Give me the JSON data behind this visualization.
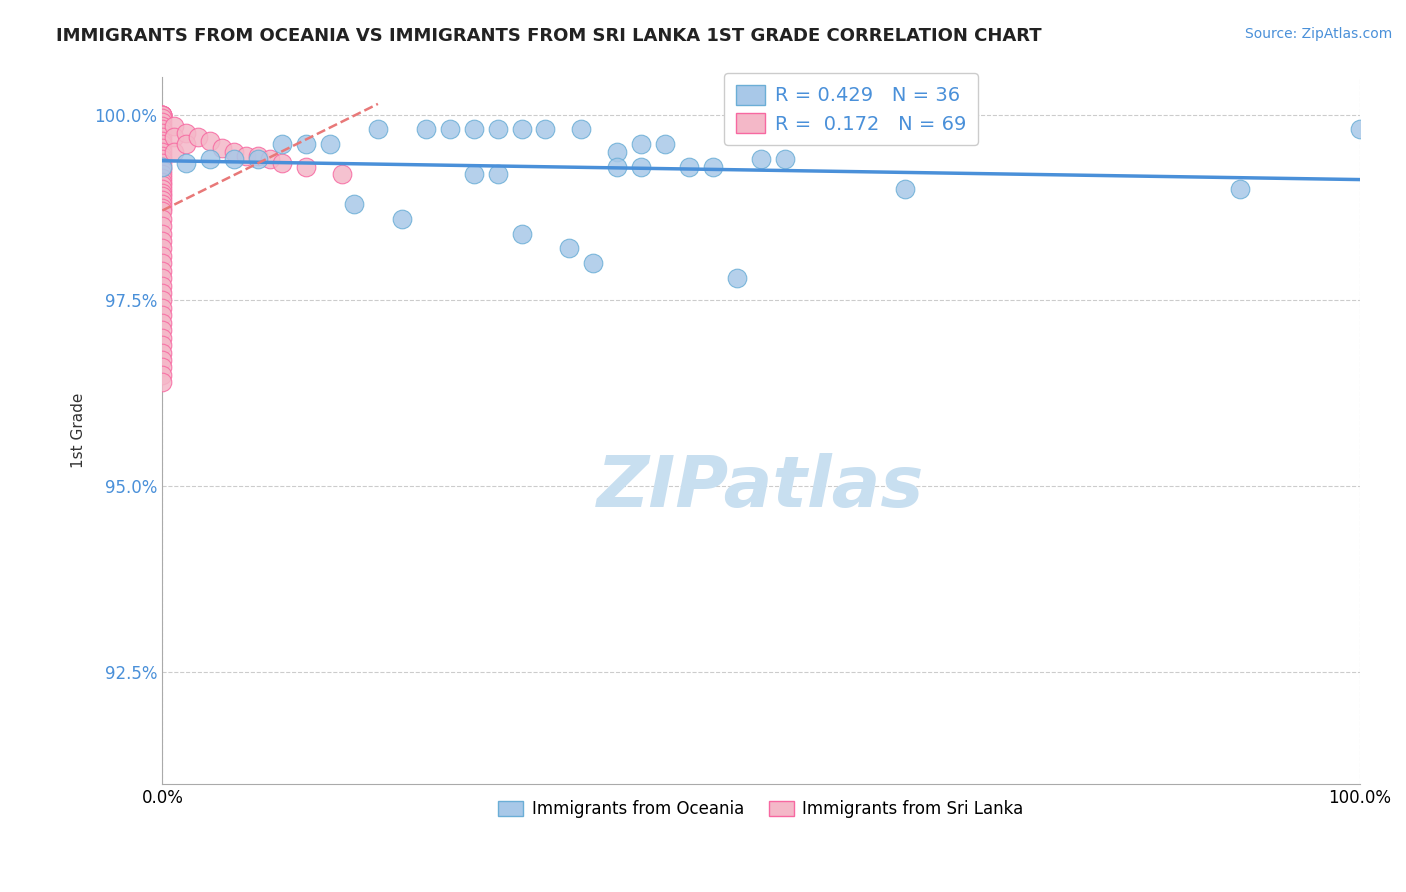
{
  "title": "IMMIGRANTS FROM OCEANIA VS IMMIGRANTS FROM SRI LANKA 1ST GRADE CORRELATION CHART",
  "source_text": "Source: ZipAtlas.com",
  "ylabel_text": "1st Grade",
  "xaxis_labels": [
    "0.0%",
    "100.0%"
  ],
  "yaxis_labels": [
    "92.5%",
    "95.0%",
    "97.5%",
    "100.0%"
  ],
  "xlim": [
    0.0,
    1.0
  ],
  "ylim": [
    0.91,
    1.005
  ],
  "yticks": [
    0.925,
    0.95,
    0.975,
    1.0
  ],
  "xticks": [
    0.0,
    1.0
  ],
  "legend_line1": "R = 0.429   N = 36",
  "legend_line2": "R =  0.172   N = 69",
  "oceania_color": "#a8c8e8",
  "srilanka_color": "#f4b8c8",
  "oceania_edge": "#6baed6",
  "srilanka_edge": "#f768a1",
  "trendline_oceania_color": "#4a90d9",
  "trendline_srilanka_color": "#e87878",
  "watermark_color": "#c8dff0",
  "background_color": "#ffffff",
  "oceania_points_x": [
    0.0,
    0.18,
    0.22,
    0.24,
    0.26,
    0.28,
    0.3,
    0.32,
    0.35,
    0.38,
    0.4,
    0.42,
    0.1,
    0.12,
    0.14,
    0.08,
    0.06,
    0.04,
    0.02,
    0.5,
    0.52,
    0.38,
    0.4,
    0.44,
    0.46,
    0.26,
    0.28,
    0.62,
    0.9,
    0.16,
    0.2,
    0.3,
    0.34,
    0.36,
    0.48,
    1.0
  ],
  "oceania_points_y": [
    0.993,
    0.998,
    0.998,
    0.998,
    0.998,
    0.998,
    0.998,
    0.998,
    0.998,
    0.995,
    0.996,
    0.996,
    0.996,
    0.996,
    0.996,
    0.994,
    0.994,
    0.994,
    0.9935,
    0.994,
    0.994,
    0.993,
    0.993,
    0.993,
    0.993,
    0.992,
    0.992,
    0.99,
    0.99,
    0.988,
    0.986,
    0.984,
    0.982,
    0.98,
    0.978,
    0.998
  ],
  "srilanka_points_x": [
    0.0,
    0.0,
    0.0,
    0.0,
    0.0,
    0.0,
    0.0,
    0.0,
    0.0,
    0.0,
    0.0,
    0.0,
    0.0,
    0.0,
    0.0,
    0.0,
    0.0,
    0.0,
    0.0,
    0.0,
    0.0,
    0.0,
    0.0,
    0.0,
    0.0,
    0.0,
    0.0,
    0.0,
    0.0,
    0.0,
    0.01,
    0.01,
    0.01,
    0.02,
    0.02,
    0.03,
    0.04,
    0.05,
    0.06,
    0.07,
    0.08,
    0.09,
    0.1,
    0.12,
    0.15,
    0.0,
    0.0,
    0.0,
    0.0,
    0.0,
    0.0,
    0.0,
    0.0,
    0.0,
    0.0,
    0.0,
    0.0,
    0.0,
    0.0,
    0.0,
    0.0,
    0.0,
    0.0,
    0.0,
    0.0,
    0.0,
    0.0,
    0.0,
    0.0
  ],
  "srilanka_points_y": [
    1.0,
    1.0,
    1.0,
    1.0,
    1.0,
    0.9995,
    0.999,
    0.9985,
    0.998,
    0.9975,
    0.997,
    0.9965,
    0.996,
    0.9955,
    0.995,
    0.9945,
    0.994,
    0.9935,
    0.993,
    0.9925,
    0.992,
    0.9915,
    0.991,
    0.9905,
    0.99,
    0.9895,
    0.989,
    0.9885,
    0.988,
    0.9875,
    0.9985,
    0.997,
    0.995,
    0.9975,
    0.996,
    0.997,
    0.9965,
    0.9955,
    0.995,
    0.9945,
    0.9945,
    0.994,
    0.9935,
    0.993,
    0.992,
    0.987,
    0.986,
    0.985,
    0.984,
    0.983,
    0.982,
    0.981,
    0.98,
    0.979,
    0.978,
    0.977,
    0.976,
    0.975,
    0.974,
    0.973,
    0.972,
    0.971,
    0.97,
    0.969,
    0.968,
    0.967,
    0.966,
    0.965,
    0.964
  ]
}
